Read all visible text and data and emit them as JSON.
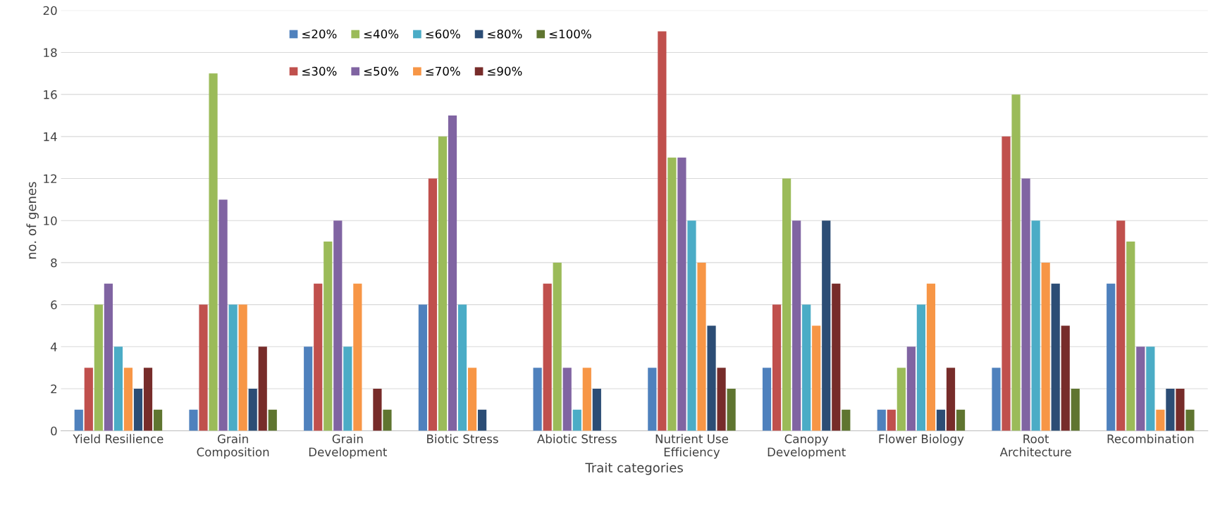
{
  "chart_data": {
    "type": "bar",
    "xlabel": "Trait categories",
    "ylabel": "no. of genes",
    "categories": [
      "Yield Resilience",
      "Grain Composition",
      "Grain Development",
      "Biotic Stress",
      "Abiotic Stress",
      "Nutrient Use Efficiency",
      "Canopy Development",
      "Flower Biology",
      "Root Architecture",
      "Recombination"
    ],
    "series": [
      {
        "name": "≤20%",
        "color": "#4f81bd",
        "values": [
          1,
          1,
          4,
          6,
          3,
          3,
          3,
          1,
          3,
          7
        ]
      },
      {
        "name": "≤30%",
        "color": "#c0504d",
        "values": [
          3,
          6,
          7,
          12,
          7,
          19,
          6,
          1,
          14,
          10
        ]
      },
      {
        "name": "≤40%",
        "color": "#9bbb59",
        "values": [
          6,
          17,
          9,
          14,
          8,
          13,
          12,
          3,
          16,
          9
        ]
      },
      {
        "name": "≤50%",
        "color": "#8064a2",
        "values": [
          7,
          11,
          10,
          15,
          3,
          13,
          10,
          4,
          12,
          4
        ]
      },
      {
        "name": "≤60%",
        "color": "#4bacc6",
        "values": [
          4,
          6,
          4,
          6,
          1,
          10,
          6,
          6,
          10,
          4
        ]
      },
      {
        "name": "≤70%",
        "color": "#f79646",
        "values": [
          3,
          6,
          7,
          3,
          3,
          8,
          5,
          7,
          8,
          1
        ]
      },
      {
        "name": "≤80%",
        "color": "#2c4d75",
        "values": [
          2,
          2,
          0,
          1,
          2,
          5,
          10,
          1,
          7,
          2
        ]
      },
      {
        "name": "≤90%",
        "color": "#772c2a",
        "values": [
          3,
          4,
          2,
          0,
          0,
          3,
          7,
          3,
          5,
          2
        ]
      },
      {
        "name": "≤100%",
        "color": "#5f7530",
        "values": [
          1,
          1,
          1,
          0,
          0,
          2,
          1,
          1,
          2,
          1
        ]
      }
    ],
    "ylim": [
      0,
      20
    ],
    "yticks": [
      0,
      2,
      4,
      6,
      8,
      10,
      12,
      14,
      16,
      18,
      20
    ],
    "grid": "y",
    "legend": "top left"
  }
}
